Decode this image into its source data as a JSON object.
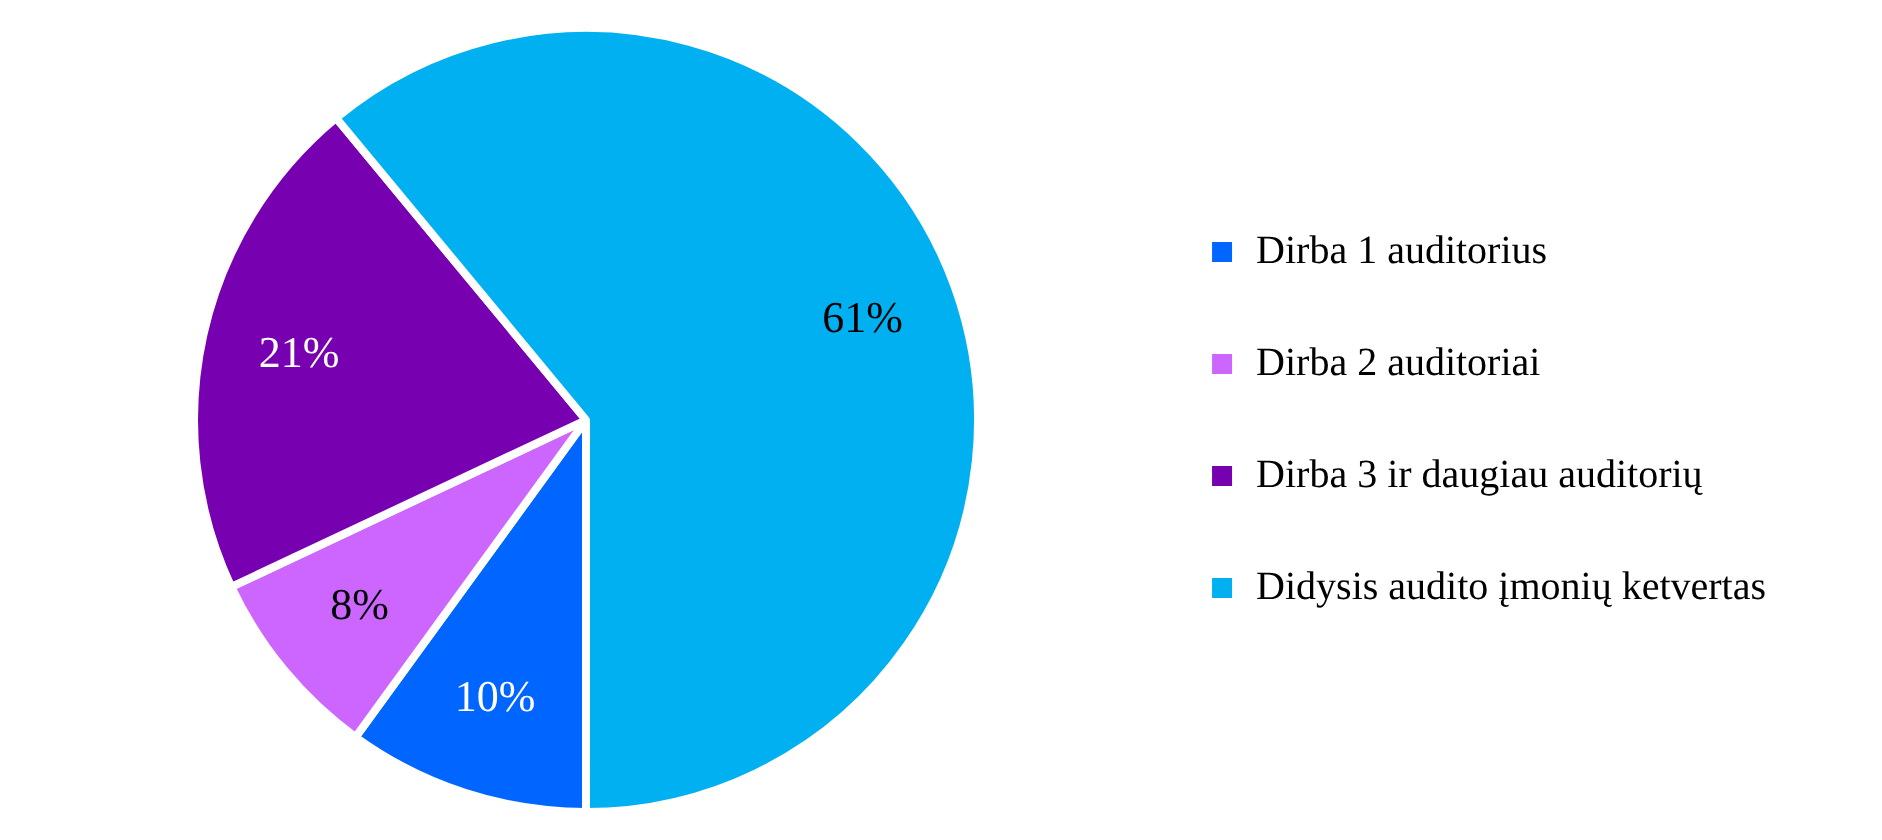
{
  "chart_data": {
    "type": "pie",
    "categories": [
      "Dirba 1 auditorius",
      "Dirba 2 auditoriai",
      "Dirba 3 ir daugiau auditorių",
      "Didysis audito įmonių ketvertas"
    ],
    "values": [
      10,
      8,
      21,
      61
    ],
    "colors": [
      "#0066ff",
      "#cc66ff",
      "#7700b0",
      "#00b0f0"
    ],
    "value_labels": [
      "10%",
      "8%",
      "21%",
      "61%"
    ],
    "legend": "right"
  }
}
